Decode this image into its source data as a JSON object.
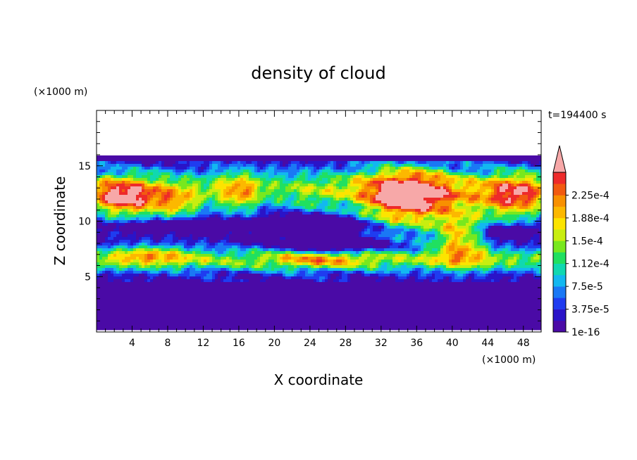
{
  "chart_data": {
    "type": "heatmap",
    "title": "density of cloud",
    "time_label": "t=194400 s",
    "xlabel": "X coordinate",
    "ylabel": "Z coordinate",
    "x_unit": "(×1000 m)",
    "y_unit": "(×1000 m)",
    "xlim": [
      0,
      50
    ],
    "ylim": [
      0,
      20
    ],
    "x_ticks": [
      4,
      8,
      12,
      16,
      20,
      24,
      28,
      32,
      36,
      40,
      44,
      48
    ],
    "y_ticks": [
      5,
      10,
      15
    ],
    "colorbar": {
      "levels": [
        1e-16,
        1.875e-05,
        3.75e-05,
        5.625e-05,
        7.5e-05,
        9.375e-05,
        0.0001125,
        0.00013125,
        0.00015,
        0.00016875,
        0.0001875,
        0.00020625,
        0.000225,
        0.00024375
      ],
      "tick_labels": [
        "1e-16",
        "3.75e-5",
        "7.5e-5",
        "1.12e-4",
        "1.5e-4",
        "1.88e-4",
        "2.25e-4"
      ],
      "colors": [
        "#4a0aa6",
        "#2a14c8",
        "#1f3cf0",
        "#1a78f5",
        "#12b8f0",
        "#10d8b0",
        "#20e060",
        "#78e81e",
        "#c8ee10",
        "#fce400",
        "#fcb800",
        "#f89000",
        "#f25a10",
        "#ee2a2a"
      ],
      "overflow_color": "#f7a8a8"
    }
  }
}
